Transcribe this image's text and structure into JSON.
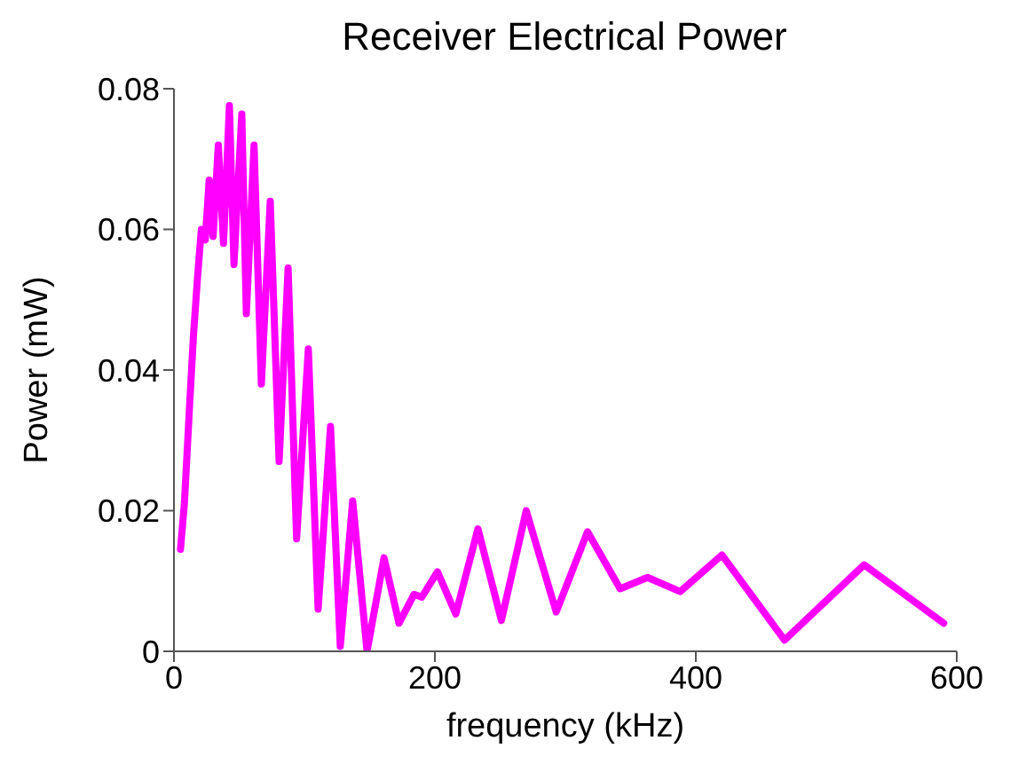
{
  "chart_data": {
    "type": "line",
    "title": "Receiver Electrical Power",
    "xlabel": "frequency (kHz)",
    "ylabel": "Power (mW)",
    "x": [
      5,
      8,
      12,
      15,
      18,
      21,
      24,
      27,
      30,
      34,
      38,
      42.5,
      46,
      52,
      55.5,
      61.4,
      67,
      73.8,
      80.6,
      87.5,
      94,
      103,
      110.5,
      120,
      127.5,
      137,
      148,
      161,
      172.5,
      184,
      190,
      202,
      216,
      233,
      251,
      270,
      293,
      317,
      342,
      363,
      388,
      420,
      468,
      529,
      590
    ],
    "series": [
      {
        "color": "#ff00ff",
        "values": [
          0.0145,
          0.021,
          0.035,
          0.045,
          0.053,
          0.06,
          0.0585,
          0.067,
          0.059,
          0.072,
          0.058,
          0.0776,
          0.055,
          0.0764,
          0.048,
          0.072,
          0.038,
          0.064,
          0.027,
          0.0545,
          0.016,
          0.043,
          0.006,
          0.032,
          0.0007,
          0.0214,
          0,
          0.0133,
          0.004,
          0.0081,
          0.0077,
          0.0113,
          0.0053,
          0.0174,
          0.0044,
          0.02,
          0.0056,
          0.017,
          0.0089,
          0.0105,
          0.0085,
          0.0137,
          0.0016,
          0.0123,
          0.004
        ]
      }
    ],
    "xlim": [
      0,
      600
    ],
    "xticks": [
      0,
      200,
      400,
      600
    ],
    "ylim": [
      0,
      0.08
    ],
    "yticks": [
      0,
      0.02,
      0.04,
      0.06,
      0.08
    ],
    "grid": false,
    "legend": false,
    "marker": "none",
    "line_style": "solid"
  }
}
